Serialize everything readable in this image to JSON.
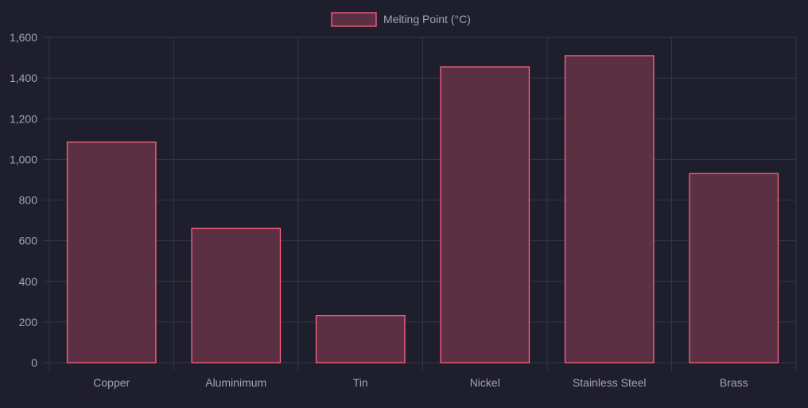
{
  "chart_data": {
    "type": "bar",
    "categories": [
      "Copper",
      "Aluminimum",
      "Tin",
      "Nickel",
      "Stainless Steel",
      "Brass"
    ],
    "series": [
      {
        "name": "Melting Point (°C)",
        "values": [
          1085,
          660,
          232,
          1455,
          1510,
          930
        ]
      }
    ],
    "ylim": [
      0,
      1600
    ],
    "yticks": [
      "0",
      "200",
      "400",
      "600",
      "800",
      "1,000",
      "1,200",
      "1,400",
      "1,600"
    ],
    "ytick_values": [
      0,
      200,
      400,
      600,
      800,
      1000,
      1200,
      1400,
      1600
    ],
    "grid": true,
    "legend_position": "top"
  },
  "colors": {
    "background": "#1f1e2d",
    "grid": "#363545",
    "bar_fill": "#5b3042",
    "bar_stroke": "#ff6384",
    "text": "#a3a3b8"
  }
}
